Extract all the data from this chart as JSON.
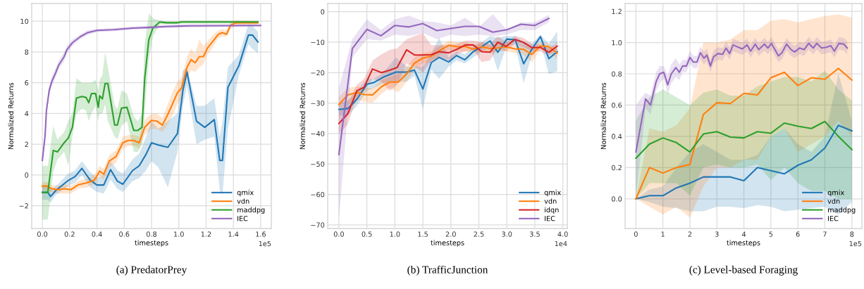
{
  "chart_data": [
    {
      "type": "line",
      "title": "(a) PredatorPrey",
      "xlabel": "timesteps",
      "ylabel": "Normalized Returns",
      "annotations": [
        "1e5"
      ],
      "xlim": [
        -0.078,
        1.678
      ],
      "ylim": [
        -3.48,
        11.15
      ],
      "xticks": [
        {
          "value": 0,
          "label": "0.0"
        },
        0.2,
        0.4,
        0.6,
        0.8,
        {
          "value": 1,
          "label": "1.0"
        },
        1.2,
        1.4,
        1.6
      ],
      "yticks": [
        -2,
        0,
        2,
        4,
        6,
        8,
        10
      ],
      "grid": true,
      "legend": "lower right",
      "series": [
        {
          "name": "qmix",
          "color": "#1f77b4",
          "x": [
            0,
            0.04,
            0.06,
            0.1,
            0.19,
            0.24,
            0.29,
            0.35,
            0.4,
            0.45,
            0.5,
            0.55,
            0.59,
            0.66,
            0.71,
            0.76,
            0.8,
            0.85,
            0.92,
            0.99,
            1.03,
            1.06,
            1.13,
            1.19,
            1.26,
            1.3,
            1.32,
            1.36,
            1.44,
            1.51,
            1.54,
            1.58
          ],
          "values": [
            -1.13,
            -1.13,
            -1.4,
            -1.0,
            -0.35,
            -0.1,
            0.43,
            -0.33,
            -0.65,
            -0.65,
            0.35,
            -0.4,
            -0.6,
            0.28,
            0.6,
            1.35,
            2.1,
            1.95,
            1.8,
            2.7,
            5.5,
            6.7,
            3.5,
            3.1,
            3.6,
            0.95,
            0.95,
            5.7,
            7.1,
            9.1,
            9.1,
            8.65
          ],
          "lower": [
            -1.6,
            -1.6,
            -1.8,
            -1.3,
            -0.7,
            -0.5,
            0.0,
            -0.8,
            -1.1,
            -1.2,
            -0.3,
            -0.9,
            -1.1,
            -0.4,
            -0.2,
            0.3,
            0.9,
            0.5,
            -0.8,
            1.5,
            4.5,
            5.8,
            2.0,
            2.3,
            2.5,
            -1.0,
            -1.3,
            3.0,
            6.5,
            8.5,
            8.2,
            7.9
          ],
          "upper": [
            -0.7,
            -0.7,
            -1.0,
            -0.7,
            0.1,
            0.3,
            0.9,
            0.2,
            -0.2,
            0.0,
            0.9,
            0.3,
            0.1,
            1.0,
            1.4,
            2.5,
            3.5,
            3.0,
            3.5,
            4.0,
            6.8,
            7.0,
            4.5,
            4.5,
            5.0,
            2.5,
            3.5,
            7.0,
            7.8,
            9.8,
            9.7,
            9.3
          ]
        },
        {
          "name": "vdn",
          "color": "#ff7f0e",
          "x": [
            0,
            0.04,
            0.06,
            0.11,
            0.16,
            0.21,
            0.26,
            0.33,
            0.38,
            0.42,
            0.45,
            0.49,
            0.54,
            0.59,
            0.63,
            0.67,
            0.71,
            0.75,
            0.8,
            0.84,
            0.88,
            0.92,
            0.95,
            0.99,
            1.02,
            1.06,
            1.09,
            1.12,
            1.15,
            1.18,
            1.21,
            1.25,
            1.29,
            1.32,
            1.35,
            1.38,
            1.42,
            1.58
          ],
          "values": [
            -0.72,
            -0.72,
            -0.87,
            -0.95,
            -0.9,
            -0.95,
            -0.65,
            -0.5,
            -0.35,
            0.25,
            0.05,
            0.9,
            1.2,
            2.1,
            2.25,
            2.25,
            2.1,
            3.1,
            3.55,
            3.5,
            3.25,
            3.95,
            4.55,
            5.35,
            5.65,
            7.0,
            7.5,
            7.3,
            7.7,
            7.7,
            8.25,
            8.7,
            9.15,
            9.25,
            9.15,
            9.75,
            9.9,
            9.9
          ],
          "lower": [
            -1.0,
            -1.0,
            -1.1,
            -1.2,
            -1.2,
            -1.2,
            -0.9,
            -0.8,
            -0.6,
            -0.1,
            -0.3,
            0.5,
            0.8,
            1.7,
            1.9,
            1.9,
            1.7,
            2.6,
            3.0,
            3.0,
            2.8,
            3.3,
            3.8,
            4.6,
            5.0,
            6.3,
            6.8,
            6.7,
            7.0,
            7.2,
            7.8,
            8.3,
            8.9,
            9.0,
            9.0,
            9.5,
            9.7,
            9.8
          ],
          "upper": [
            -0.45,
            -0.45,
            -0.65,
            -0.7,
            -0.6,
            -0.7,
            -0.4,
            -0.2,
            0.0,
            0.6,
            0.4,
            1.3,
            1.6,
            2.5,
            2.6,
            2.6,
            2.5,
            3.6,
            4.0,
            4.0,
            3.7,
            4.6,
            5.3,
            6.1,
            6.3,
            7.7,
            8.2,
            7.9,
            8.8,
            8.4,
            8.7,
            9.1,
            9.4,
            9.5,
            9.4,
            10.0,
            10.05,
            10.0
          ]
        },
        {
          "name": "maddpg",
          "color": "#2ca02c",
          "x": [
            0,
            0.04,
            0.08,
            0.11,
            0.16,
            0.19,
            0.22,
            0.25,
            0.29,
            0.32,
            0.34,
            0.36,
            0.39,
            0.41,
            0.42,
            0.44,
            0.46,
            0.48,
            0.53,
            0.55,
            0.58,
            0.62,
            0.67,
            0.7,
            0.73,
            0.75,
            0.78,
            0.81,
            0.86,
            0.91,
            0.99,
            1.02,
            1.58
          ],
          "values": [
            -1.13,
            -1.13,
            1.6,
            1.5,
            2.1,
            2.4,
            3.1,
            5.0,
            5.1,
            5.05,
            4.7,
            5.3,
            5.3,
            4.4,
            5.15,
            4.95,
            5.95,
            5.95,
            3.25,
            3.25,
            4.35,
            4.4,
            2.9,
            2.9,
            3.1,
            6.25,
            8.8,
            9.55,
            9.95,
            9.9,
            9.9,
            9.95,
            9.95
          ],
          "lower": [
            -2.9,
            -2.9,
            0.2,
            1.0,
            1.5,
            0.6,
            2.5,
            4.0,
            4.3,
            4.2,
            3.5,
            4.0,
            4.5,
            3.5,
            4.0,
            4.0,
            4.6,
            3.5,
            2.5,
            2.3,
            3.2,
            3.5,
            1.5,
            1.5,
            2.0,
            4.0,
            7.5,
            9.0,
            9.8,
            9.8,
            9.8,
            9.85,
            9.85
          ],
          "upper": [
            0.6,
            0.6,
            3.2,
            2.3,
            2.8,
            3.5,
            4.0,
            6.3,
            6.0,
            6.0,
            6.0,
            6.0,
            6.2,
            5.5,
            6.2,
            6.5,
            8.0,
            7.0,
            4.5,
            4.3,
            5.5,
            5.3,
            3.8,
            3.5,
            4.0,
            8.5,
            10.5,
            10.2,
            10.05,
            10.0,
            10.0,
            10.05,
            10.05
          ]
        },
        {
          "name": "IEC",
          "color": "#9467bd",
          "x": [
            0,
            0.02,
            0.03,
            0.05,
            0.07,
            0.1,
            0.12,
            0.16,
            0.18,
            0.22,
            0.28,
            0.33,
            0.4,
            0.52,
            0.66,
            0.8,
            0.9,
            1.07,
            1.6
          ],
          "values": [
            0.95,
            2.55,
            4.2,
            5.5,
            6.1,
            6.7,
            7.15,
            7.7,
            8.15,
            8.6,
            9.0,
            9.25,
            9.4,
            9.45,
            9.55,
            9.6,
            9.65,
            9.7,
            9.72
          ],
          "lower": [
            0.8,
            2.3,
            3.9,
            5.2,
            5.8,
            6.4,
            6.9,
            7.4,
            7.9,
            8.4,
            8.85,
            9.1,
            9.3,
            9.35,
            9.45,
            9.5,
            9.55,
            9.6,
            9.65
          ],
          "upper": [
            1.1,
            2.8,
            4.5,
            5.8,
            6.4,
            7.0,
            7.4,
            8.0,
            8.4,
            8.8,
            9.15,
            9.4,
            9.5,
            9.55,
            9.65,
            9.7,
            9.75,
            9.8,
            9.8
          ]
        }
      ]
    },
    {
      "type": "line",
      "title": "(b) TrafficJunction",
      "xlabel": "timesteps",
      "ylabel": "Normalized Returns",
      "annotations": [
        "1e4"
      ],
      "xlim": [
        -0.2,
        4.08
      ],
      "ylim": [
        -71.2,
        2.7
      ],
      "xticks": [
        {
          "value": 0,
          "label": "0.0"
        },
        0.5,
        {
          "value": 1,
          "label": "1.0"
        },
        1.5,
        {
          "value": 2,
          "label": "2.0"
        },
        2.5,
        {
          "value": 3,
          "label": "3.0"
        },
        3.5,
        {
          "value": 4,
          "label": "4.0"
        }
      ],
      "yticks": [
        -70,
        -60,
        -50,
        -40,
        -30,
        -20,
        -10,
        0
      ],
      "grid": true,
      "legend": "lower right",
      "series": [
        {
          "name": "qmix",
          "color": "#1f77b4",
          "x": [
            0,
            0.16,
            0.32,
            0.5,
            0.62,
            0.79,
            1.02,
            1.21,
            1.35,
            1.5,
            1.65,
            1.79,
            1.96,
            2.1,
            2.25,
            2.4,
            2.55,
            2.7,
            2.84,
            3.0,
            3.15,
            3.3,
            3.45,
            3.6,
            3.75,
            3.9
          ],
          "values": [
            -32.1,
            -31.8,
            -28.8,
            -23.8,
            -23.3,
            -21.5,
            -19.8,
            -19.8,
            -19.2,
            -25.4,
            -16.7,
            -15,
            -16.5,
            -14.4,
            -15.8,
            -13.1,
            -11.5,
            -9.6,
            -13.3,
            -9.0,
            -9.2,
            -17.1,
            -12.2,
            -8.2,
            -15.4,
            -13.1
          ],
          "lower": [
            -34,
            -34,
            -31,
            -26,
            -25,
            -23.5,
            -23,
            -23,
            -21,
            -32,
            -19,
            -22,
            -18,
            -16,
            -17,
            -15,
            -13,
            -11.5,
            -19.5,
            -11,
            -11,
            -23.5,
            -14,
            -10,
            -20.5,
            -19.5
          ],
          "upper": [
            -30,
            -29,
            -26,
            -22,
            -22,
            -20,
            -15,
            -18,
            -18,
            -18,
            -14,
            -8.5,
            -15,
            -13,
            -14,
            -11.5,
            -10,
            -8,
            -8.5,
            -8,
            -8,
            -10,
            -10.5,
            -7.5,
            -10.5,
            -6.5
          ]
        },
        {
          "name": "vdn",
          "color": "#ff7f0e",
          "x": [
            0,
            0.16,
            0.32,
            0.45,
            0.6,
            0.76,
            0.91,
            1.06,
            1.21,
            1.35,
            1.5,
            1.65,
            1.82,
            1.96,
            2.11,
            2.26,
            2.4,
            2.55,
            2.7,
            2.84,
            2.99,
            3.14,
            3.29,
            3.45,
            3.6,
            3.75,
            3.9
          ],
          "values": [
            -30.5,
            -27.3,
            -26.5,
            -27.2,
            -27.3,
            -24.6,
            -23.1,
            -23.1,
            -20.4,
            -16.9,
            -15.2,
            -14.6,
            -12.5,
            -11,
            -11.5,
            -11.4,
            -12.3,
            -11.5,
            -12.1,
            -11.9,
            -11.5,
            -12.2,
            -12.3,
            -14,
            -11.2,
            -11.5,
            -13.6
          ],
          "lower": [
            -33,
            -30,
            -29,
            -29.5,
            -30,
            -27,
            -25,
            -26.5,
            -23,
            -19,
            -17,
            -16.5,
            -14,
            -12.5,
            -13,
            -13,
            -13.5,
            -13,
            -13.5,
            -13,
            -13,
            -13.5,
            -14,
            -16.5,
            -12.5,
            -13,
            -15.5
          ],
          "upper": [
            -28,
            -25,
            -24.5,
            -25,
            -25,
            -22.5,
            -21.5,
            -20.5,
            -18,
            -15,
            -13.5,
            -13,
            -11,
            -9.5,
            -10,
            -10,
            -11,
            -10,
            -11,
            -10.5,
            -10,
            -11,
            -11,
            -12,
            -10,
            -10.5,
            -12
          ]
        },
        {
          "name": "idqn",
          "color": "#d62728",
          "x": [
            0,
            0.16,
            0.32,
            0.45,
            0.6,
            0.76,
            0.91,
            1.04,
            1.21,
            1.35,
            1.5,
            1.65,
            1.79,
            1.96,
            2.11,
            2.26,
            2.4,
            2.55,
            2.7,
            2.84,
            2.99,
            3.14,
            3.29,
            3.45,
            3.6,
            3.75,
            3.9
          ],
          "values": [
            -36.7,
            -33.5,
            -26,
            -24.8,
            -18.8,
            -20,
            -19.2,
            -18.3,
            -12.5,
            -14.2,
            -14.2,
            -14.1,
            -13.1,
            -13.5,
            -12.3,
            -10.9,
            -10.9,
            -13.1,
            -13.3,
            -10,
            -11.4,
            -9.1,
            -10,
            -11.8,
            -11.7,
            -13.3,
            -11.3
          ],
          "lower": [
            -40,
            -37,
            -28,
            -26,
            -22,
            -23,
            -26,
            -24,
            -17,
            -18,
            -20,
            -16,
            -15,
            -16,
            -14,
            -13,
            -12.5,
            -16.5,
            -16,
            -12,
            -13,
            -10.5,
            -11.5,
            -13,
            -13,
            -14.5,
            -12.5
          ],
          "upper": [
            -33,
            -30,
            -24,
            -22,
            -16,
            -14,
            -12.5,
            -12,
            -9,
            -8,
            -7,
            -11,
            -11,
            -11,
            -10.5,
            -9.5,
            -9.5,
            -10,
            -10.5,
            -8,
            -10,
            -8,
            -8.5,
            -10.5,
            -10.5,
            -12,
            -10
          ]
        },
        {
          "name": "IEC",
          "color": "#9467bd",
          "x": [
            0,
            0.24,
            0.5,
            0.75,
            1.0,
            1.25,
            1.5,
            1.75,
            2.0,
            2.25,
            2.5,
            2.75,
            3.0,
            3.25,
            3.5,
            3.75
          ],
          "values": [
            -46.9,
            -12.1,
            -5.8,
            -7.9,
            -4.5,
            -5.0,
            -3.9,
            -6.2,
            -5.5,
            -4.8,
            -4.8,
            -6.7,
            -5.9,
            -4.1,
            -4.5,
            -2.2
          ],
          "lower": [
            -68,
            -15,
            -9,
            -9.5,
            -7.5,
            -8,
            -7,
            -9,
            -7.5,
            -8,
            -7.5,
            -8,
            -7.5,
            -6,
            -6,
            -3.5
          ],
          "upper": [
            -25,
            -9,
            -2.5,
            -6,
            -2.5,
            -1.3,
            -3,
            -3.5,
            -4.5,
            -2,
            -5,
            -0.8,
            -6,
            -3.5,
            -3.5,
            -1
          ]
        }
      ]
    },
    {
      "type": "line",
      "title": "(c) Level-based Foraging",
      "xlabel": "timesteps",
      "ylabel": "Normalized Returns",
      "annotations": [
        "1e5"
      ],
      "xlim": [
        -0.4,
        8.37
      ],
      "ylim": [
        -0.19,
        1.25
      ],
      "xticks": [
        0,
        1,
        2,
        3,
        4,
        5,
        6,
        7,
        8
      ],
      "yticks": [
        {
          "value": 0,
          "label": "0.0"
        },
        0.2,
        0.4,
        0.6,
        0.8,
        {
          "value": 1,
          "label": "1.0"
        },
        1.2
      ],
      "grid": true,
      "legend": "lower right",
      "series": [
        {
          "name": "qmix",
          "color": "#1f77b4",
          "x": [
            0,
            0.5,
            1,
            1.5,
            2,
            2.5,
            3,
            3.5,
            4,
            4.5,
            5,
            5.5,
            6,
            6.5,
            7,
            7.5,
            8
          ],
          "values": [
            0,
            0.02,
            0.02,
            0.07,
            0.1,
            0.14,
            0.14,
            0.14,
            0.116,
            0.2,
            0.18,
            0.16,
            0.215,
            0.25,
            0.325,
            0.47,
            0.435
          ],
          "lower": [
            0,
            -0.02,
            -0.05,
            -0.06,
            -0.08,
            -0.08,
            -0.05,
            -0.05,
            -0.06,
            -0.04,
            -0.05,
            -0.08,
            -0.07,
            -0.06,
            -0.05,
            -0.1,
            -0.02
          ],
          "upper": [
            0,
            0.06,
            0.08,
            0.2,
            0.3,
            0.35,
            0.3,
            0.25,
            0.25,
            0.28,
            0.4,
            0.45,
            0.35,
            0.3,
            0.4,
            0.8,
            0.5
          ]
        },
        {
          "name": "vdn",
          "color": "#ff7f0e",
          "x": [
            0,
            0.5,
            1,
            1.5,
            2,
            2.5,
            3,
            3.5,
            4,
            4.5,
            5,
            5.5,
            6,
            6.5,
            7,
            7.5,
            8
          ],
          "values": [
            0,
            0.2,
            0.165,
            0.2,
            0.22,
            0.54,
            0.615,
            0.61,
            0.675,
            0.665,
            0.775,
            0.81,
            0.725,
            0.775,
            0.765,
            0.835,
            0.76
          ],
          "lower": [
            0,
            -0.05,
            -0.1,
            -0.05,
            -0.12,
            0.08,
            0.2,
            0.2,
            0.25,
            0.25,
            0.4,
            0.45,
            0.3,
            0.35,
            0.4,
            0.5,
            0.4
          ],
          "upper": [
            0,
            0.45,
            0.43,
            0.47,
            0.58,
            1.0,
            1.0,
            1.02,
            1.08,
            1.08,
            1.14,
            1.15,
            1.13,
            1.15,
            1.17,
            1.18,
            1.16
          ]
        },
        {
          "name": "maddpg",
          "color": "#2ca02c",
          "x": [
            0,
            0.5,
            1,
            1.5,
            2,
            2.5,
            3,
            3.5,
            4,
            4.5,
            5,
            5.5,
            6,
            6.5,
            7,
            7.5,
            8
          ],
          "values": [
            0.26,
            0.35,
            0.39,
            0.36,
            0.3,
            0.415,
            0.43,
            0.395,
            0.39,
            0.43,
            0.42,
            0.485,
            0.465,
            0.45,
            0.495,
            0.4,
            0.315
          ],
          "lower": [
            0,
            0.1,
            0.1,
            0.1,
            0.02,
            0.2,
            0.22,
            0.2,
            0.2,
            0.22,
            0.12,
            0.2,
            0.1,
            0.05,
            0.05,
            0,
            0.0
          ],
          "upper": [
            0.5,
            0.65,
            0.7,
            0.65,
            0.6,
            0.68,
            0.7,
            0.66,
            0.66,
            0.72,
            0.75,
            0.78,
            0.78,
            0.75,
            0.82,
            0.7,
            0.63
          ]
        },
        {
          "name": "IEC",
          "color": "#9467bd",
          "x": [
            0,
            0.36,
            0.54,
            0.75,
            0.88,
            1.03,
            1.18,
            1.31,
            1.48,
            1.61,
            1.73,
            1.87,
            2.0,
            2.13,
            2.26,
            2.39,
            2.52,
            2.63,
            2.76,
            2.88,
            3.04,
            3.21,
            3.34,
            3.47,
            3.6,
            3.73,
            3.94,
            4.12,
            4.25,
            4.42,
            4.55,
            4.76,
            4.89,
            5.02,
            5.15,
            5.28,
            5.41,
            5.58,
            5.75,
            5.88,
            6.06,
            6.23,
            6.4,
            6.57,
            6.7,
            6.88,
            7.05,
            7.22,
            7.35,
            7.52,
            7.7,
            7.83
          ],
          "values": [
            0.3,
            0.64,
            0.6,
            0.75,
            0.8,
            0.81,
            0.73,
            0.8,
            0.84,
            0.81,
            0.85,
            0.85,
            0.905,
            0.875,
            0.875,
            0.935,
            0.9,
            0.92,
            0.85,
            0.91,
            0.93,
            0.925,
            0.965,
            0.93,
            0.985,
            0.975,
            0.96,
            0.985,
            0.945,
            0.99,
            0.955,
            0.99,
            0.965,
            0.995,
            0.955,
            0.915,
            0.935,
            0.99,
            0.955,
            0.94,
            0.965,
            0.955,
            0.995,
            0.965,
            0.995,
            0.965,
            0.97,
            0.98,
            0.945,
            0.995,
            0.99,
            0.965
          ],
          "lower": [
            0.0,
            0.58,
            0.54,
            0.69,
            0.74,
            0.77,
            0.67,
            0.74,
            0.78,
            0.76,
            0.81,
            0.81,
            0.865,
            0.835,
            0.835,
            0.895,
            0.86,
            0.88,
            0.81,
            0.87,
            0.89,
            0.885,
            0.925,
            0.89,
            0.945,
            0.935,
            0.92,
            0.945,
            0.905,
            0.95,
            0.915,
            0.95,
            0.925,
            0.955,
            0.915,
            0.875,
            0.895,
            0.95,
            0.915,
            0.9,
            0.925,
            0.915,
            0.955,
            0.925,
            0.955,
            0.925,
            0.93,
            0.94,
            0.905,
            0.955,
            0.95,
            0.925
          ],
          "upper": [
            0.6,
            0.68,
            0.66,
            0.81,
            0.85,
            0.85,
            0.79,
            0.86,
            0.9,
            0.86,
            0.89,
            0.89,
            0.945,
            0.915,
            0.915,
            0.975,
            0.94,
            0.96,
            0.89,
            0.95,
            0.97,
            0.965,
            1.005,
            0.97,
            1.025,
            1.015,
            1.0,
            1.025,
            0.985,
            1.03,
            0.995,
            1.03,
            1.005,
            1.035,
            0.995,
            0.955,
            0.975,
            1.03,
            0.995,
            0.98,
            1.005,
            0.995,
            1.035,
            1.005,
            1.035,
            1.005,
            1.01,
            1.02,
            0.985,
            1.035,
            1.03,
            1.005
          ]
        }
      ]
    }
  ]
}
